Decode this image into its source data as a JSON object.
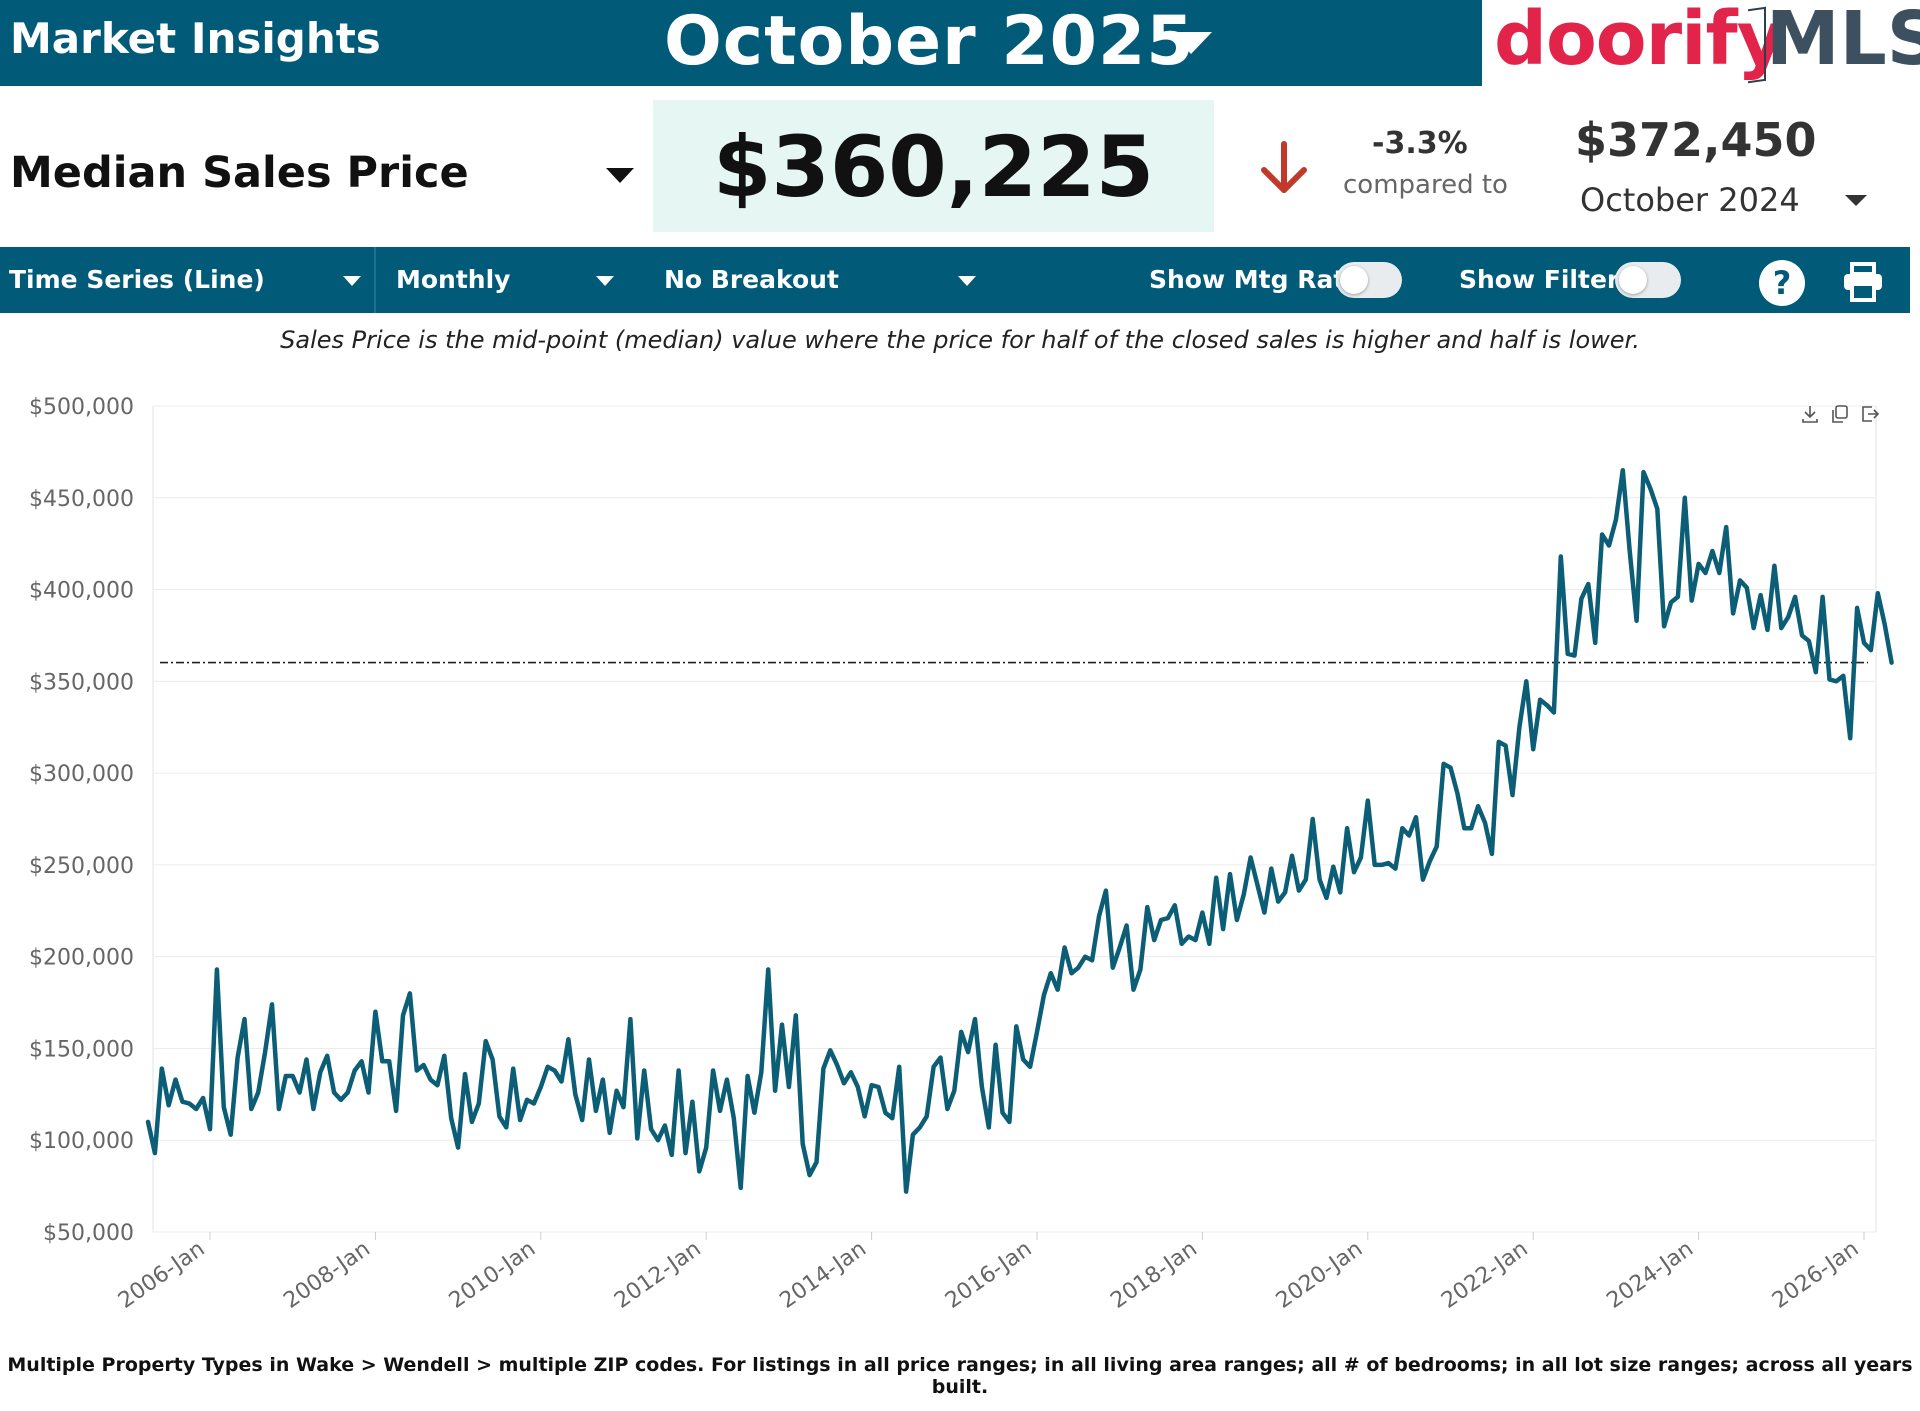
{
  "header": {
    "app_title": "Market Insights",
    "period": "October 2025",
    "logo_brand": "doorify",
    "logo_suffix": "MLS",
    "logo_colors": {
      "brand": "#e2244a",
      "suffix": "#3d5060"
    }
  },
  "metric": {
    "label": "Median Sales Price",
    "value": "$360,225",
    "change_pct": "-3.3%",
    "compared_label": "compared to",
    "prev_value": "$372,450",
    "prev_period": "October 2024",
    "trend_icon": "down-arrow-icon",
    "trend_color": "#c0392b"
  },
  "toolbar": {
    "chart_type": "Time Series (Line)",
    "interval": "Monthly",
    "breakout": "No Breakout",
    "mtg_rate_label": "Show Mtg Rate:",
    "mtg_rate_on": false,
    "filters_label": "Show Filters:",
    "filters_on": false,
    "help_symbol": "?",
    "help_icon": "help-icon",
    "print_icon": "printer-icon"
  },
  "description": "Sales Price is the mid-point (median) value where the price for half of the closed sales is higher and half is lower.",
  "chart_tools": [
    "download-icon",
    "copy-icon",
    "export-icon"
  ],
  "chart_data": {
    "type": "line",
    "x_start": "2005-04",
    "x_interval": "month",
    "x_ticks": [
      "2006-Jan",
      "2008-Jan",
      "2010-Jan",
      "2012-Jan",
      "2014-Jan",
      "2016-Jan",
      "2018-Jan",
      "2020-Jan",
      "2022-Jan",
      "2024-Jan",
      "2026-Jan"
    ],
    "y_ticks": [
      "$50,000",
      "$100,000",
      "$150,000",
      "$200,000",
      "$250,000",
      "$300,000",
      "$350,000",
      "$400,000",
      "$450,000",
      "$500,000"
    ],
    "ylim": [
      50000,
      500000
    ],
    "reference_line": 360225,
    "line_color": "#0b5e75",
    "grid": true,
    "series": [
      {
        "values": [
          110000,
          93000,
          139000,
          119000,
          133000,
          121000,
          120000,
          117000,
          123000,
          106000,
          193000,
          118000,
          103000,
          145000,
          166000,
          117000,
          126000,
          148000,
          174000,
          117000,
          135000,
          135000,
          126000,
          144000,
          117000,
          137000,
          146000,
          126000,
          122000,
          126000,
          138000,
          143000,
          126000,
          170000,
          143000,
          143000,
          116000,
          168000,
          180000,
          138000,
          141000,
          133000,
          130000,
          146000,
          112000,
          96000,
          136000,
          110000,
          120000,
          154000,
          144000,
          113000,
          107000,
          139000,
          111000,
          122000,
          120000,
          129000,
          140000,
          138000,
          132000,
          155000,
          125000,
          111000,
          144000,
          116000,
          133000,
          104000,
          127000,
          118000,
          166000,
          101000,
          138000,
          106000,
          100000,
          108000,
          92000,
          138000,
          93000,
          121000,
          83000,
          96000,
          138000,
          116000,
          133000,
          112000,
          74000,
          135000,
          115000,
          137000,
          193000,
          127000,
          163000,
          129000,
          168000,
          98000,
          81000,
          88000,
          139000,
          149000,
          141000,
          131000,
          137000,
          129000,
          113000,
          130000,
          129000,
          115000,
          112000,
          140000,
          72000,
          103000,
          107000,
          113000,
          140000,
          145000,
          117000,
          127000,
          159000,
          148000,
          166000,
          129000,
          107000,
          152000,
          115000,
          110000,
          162000,
          144000,
          140000,
          159000,
          179000,
          191000,
          182000,
          205000,
          191000,
          194000,
          200000,
          198000,
          222000,
          236000,
          194000,
          205000,
          217000,
          182000,
          193000,
          227000,
          209000,
          220000,
          221000,
          228000,
          207000,
          211000,
          209000,
          224000,
          207000,
          243000,
          215000,
          245000,
          220000,
          234000,
          254000,
          239000,
          224000,
          248000,
          230000,
          235000,
          255000,
          236000,
          242000,
          275000,
          242000,
          232000,
          249000,
          235000,
          270000,
          246000,
          254000,
          285000,
          250000,
          250000,
          251000,
          248000,
          270000,
          266000,
          276000,
          242000,
          252000,
          260000,
          305000,
          303000,
          289000,
          270000,
          270000,
          282000,
          273000,
          256000,
          317000,
          315000,
          288000,
          325000,
          350000,
          313000,
          340000,
          337000,
          333000,
          418000,
          365000,
          364000,
          395000,
          403000,
          371000,
          430000,
          424000,
          438000,
          465000,
          421000,
          383000,
          464000,
          455000,
          444000,
          380000,
          393000,
          396000,
          450000,
          394000,
          414000,
          409000,
          421000,
          409000,
          434000,
          387000,
          405000,
          401000,
          379000,
          397000,
          378000,
          413000,
          379000,
          385000,
          396000,
          375000,
          372000,
          355000,
          396000,
          351000,
          350000,
          353000,
          319000,
          390000,
          371000,
          367000,
          398000,
          381000,
          360225
        ]
      }
    ]
  },
  "footnote": "Multiple Property Types in Wake > Wendell > multiple ZIP codes. For listings in all price ranges; in all living area ranges; all # of bedrooms; in all lot size ranges; across all years built."
}
